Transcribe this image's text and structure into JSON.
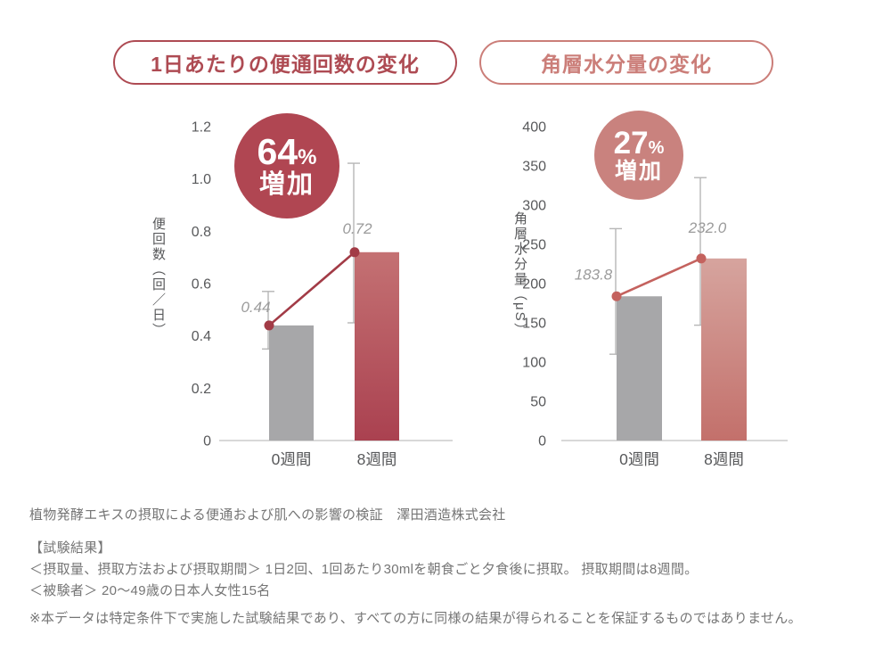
{
  "titles": {
    "left": "1日あたりの便通回数の変化",
    "right": "角層水分量の変化"
  },
  "chart_data": [
    {
      "type": "bar",
      "title": "1日あたりの便通回数の変化",
      "badge": {
        "value": "64",
        "percent": "%",
        "label": "増加"
      },
      "ylabel": "便回数（回／日）",
      "categories": [
        "0週間",
        "8週間"
      ],
      "values": [
        0.44,
        0.72
      ],
      "value_labels": [
        "0.44",
        "0.72"
      ],
      "error_low": [
        0.35,
        0.45
      ],
      "error_high": [
        0.57,
        1.06
      ],
      "ylim": [
        0,
        1.2
      ],
      "yticks": [
        "1.2",
        "1.0",
        "0.8",
        "0.6",
        "0.4",
        "0.2",
        "0"
      ],
      "grid": false,
      "legend": null,
      "bar_fill_0": "#a7a7a9",
      "bar_gradient_1": [
        "#c47173",
        "#aa4150"
      ],
      "line_color": "#a23b46",
      "badge_color": "#b04652",
      "title_color": "#ae4b53"
    },
    {
      "type": "bar",
      "title": "角層水分量の変化",
      "badge": {
        "value": "27",
        "percent": "%",
        "label": "増加"
      },
      "ylabel": "角層水分量（μS）",
      "categories": [
        "0週間",
        "8週間"
      ],
      "values": [
        183.8,
        232.0
      ],
      "value_labels": [
        "183.8",
        "232.0"
      ],
      "error_low": [
        110,
        147
      ],
      "error_high": [
        270,
        335
      ],
      "ylim": [
        0,
        400
      ],
      "yticks": [
        "400",
        "350",
        "300",
        "250",
        "200",
        "150",
        "100",
        "50",
        "0"
      ],
      "grid": false,
      "legend": null,
      "bar_fill_0": "#a7a7a9",
      "bar_gradient_1": [
        "#d6a49e",
        "#c3706b"
      ],
      "line_color": "#c4625e",
      "badge_color": "#c9827e",
      "title_color": "#cb7e79"
    }
  ],
  "footer": {
    "source": "植物発酵エキスの摂取による便通および肌への影響の検証　澤田酒造株式会社",
    "heading": "【試験結果】",
    "intake": "＜摂取量、摂取方法および摂取期間＞ 1日2回、1回あたり30mlを朝食ごと夕食後に摂取。 摂取期間は8週間。",
    "subjects": "＜被験者＞ 20〜49歳の日本人女性15名",
    "disclaimer": "※本データは特定条件下で実施した試験結果であり、すべての方に同様の結果が得られることを保証するものではありません。"
  },
  "colors": {
    "background": "#ffffff",
    "axis_text": "#58595b",
    "value_label": "#9b9b9b",
    "baseline": "#cbcbcb",
    "error_bar": "#b6b6b6",
    "gray_bar": "#a7a7a9"
  }
}
